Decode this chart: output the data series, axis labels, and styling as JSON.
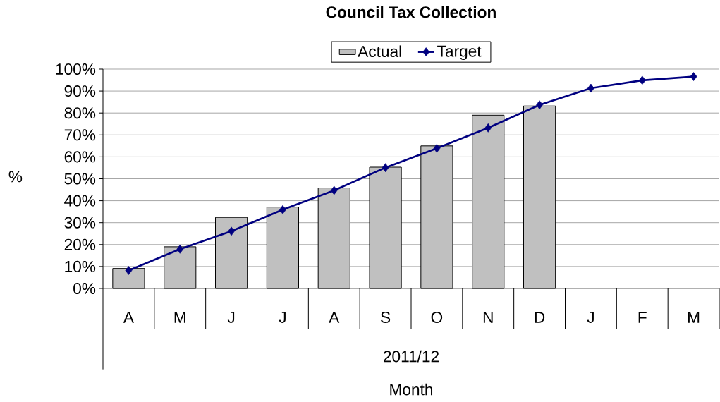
{
  "chart_data": {
    "type": "bar",
    "title": "Council Tax Collection",
    "xlabel": "Month",
    "ylabel": "%",
    "annotations": [
      "2011/12"
    ],
    "categories": [
      "A",
      "M",
      "J",
      "J",
      "A",
      "S",
      "O",
      "N",
      "D",
      "J",
      "F",
      "M"
    ],
    "series": [
      {
        "name": "Actual",
        "color": "#c0c0c0",
        "values": [
          9.1,
          19.0,
          32.4,
          37.1,
          45.8,
          55.3,
          65.0,
          79.0,
          83.2,
          null,
          null,
          null
        ]
      },
      {
        "name": "Target",
        "type": "line",
        "color": "#000080",
        "marker": "diamond",
        "values": [
          8.2,
          17.9,
          26.1,
          35.9,
          44.7,
          55.1,
          63.9,
          73.2,
          83.7,
          91.3,
          94.9,
          96.6
        ]
      }
    ],
    "ylim": [
      0,
      100
    ],
    "yticks": [
      {
        "value": 0,
        "label": "0%"
      },
      {
        "value": 10,
        "label": "10%"
      },
      {
        "value": 20,
        "label": "20%"
      },
      {
        "value": 30,
        "label": "30%"
      },
      {
        "value": 40,
        "label": "40%"
      },
      {
        "value": 50,
        "label": "50%"
      },
      {
        "value": 60,
        "label": "60%"
      },
      {
        "value": 70,
        "label": "70%"
      },
      {
        "value": 80,
        "label": "80%"
      },
      {
        "value": 90,
        "label": "90%"
      },
      {
        "value": 100,
        "label": "100%"
      }
    ],
    "grid": "y",
    "legend": "top"
  }
}
